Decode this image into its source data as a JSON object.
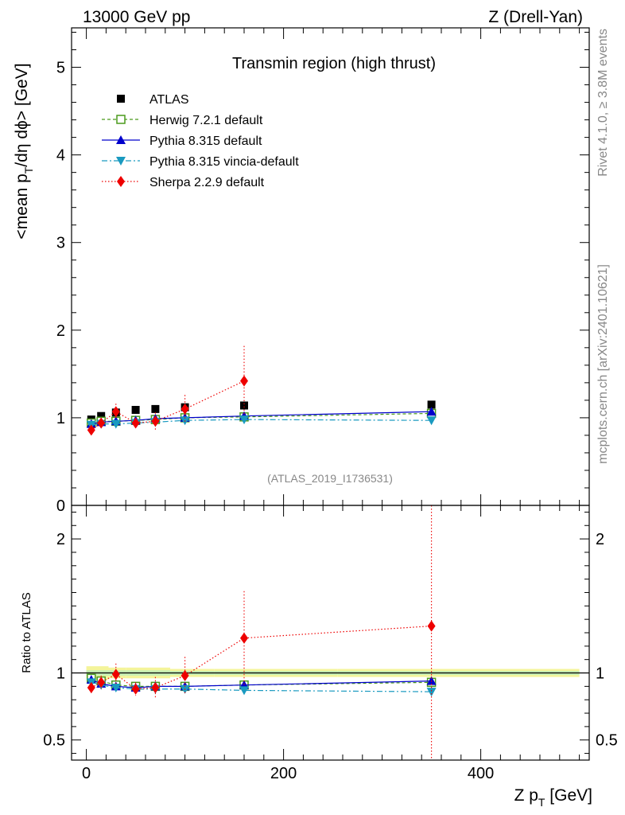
{
  "header": {
    "left_label": "13000 GeV pp",
    "right_label": "Z (Drell-Yan)"
  },
  "side_labels": {
    "rivet": "Rivet 4.1.0, ≥ 3.8M events",
    "mcplots": "mcplots.cern.ch [arXiv:2401.10621]"
  },
  "analysis_id": "(ATLAS_2019_I1736531)",
  "colors": {
    "atlas": "#000000",
    "herwig": "#4a9a1c",
    "pythia": "#0000cc",
    "vincia": "#1a9ac0",
    "sherpa": "#ee0000",
    "band_outer": "#f4f49a",
    "band_inner": "#c8f0b4"
  },
  "chart_data": [
    {
      "type": "scatter",
      "title": "Transmin region (high thrust)",
      "ylabel_main": "<mean p",
      "ylabel_sub": "T",
      "ylabel_tail": "/dη dϕ> [GeV]",
      "xlim": [
        -15,
        510
      ],
      "ylim": [
        0,
        5.45
      ],
      "yticks": [
        {
          "v": 0,
          "label": "0"
        },
        {
          "v": 1,
          "label": "1"
        },
        {
          "v": 2,
          "label": "2"
        },
        {
          "v": 3,
          "label": "3"
        },
        {
          "v": 4,
          "label": "4"
        },
        {
          "v": 5,
          "label": "5"
        }
      ],
      "x": [
        5,
        15,
        30,
        50,
        70,
        100,
        160,
        350
      ],
      "series": [
        {
          "key": "atlas",
          "name": "ATLAS",
          "style": "atlas",
          "values": [
            0.98,
            1.02,
            1.06,
            1.09,
            1.1,
            1.12,
            1.14,
            1.15
          ]
        },
        {
          "key": "herwig",
          "name": "Herwig 7.2.1 default",
          "style": "herwig",
          "values": [
            0.94,
            0.96,
            0.96,
            0.97,
            0.98,
            1.0,
            1.01,
            1.05
          ]
        },
        {
          "key": "pythia",
          "name": "Pythia 8.315 default",
          "style": "pythia",
          "values": [
            0.93,
            0.95,
            0.96,
            0.97,
            0.99,
            1.0,
            1.02,
            1.07
          ]
        },
        {
          "key": "vincia",
          "name": "Pythia 8.315 vincia-default",
          "style": "vincia",
          "values": [
            0.92,
            0.93,
            0.93,
            0.94,
            0.95,
            0.97,
            0.98,
            0.97
          ]
        },
        {
          "key": "sherpa",
          "name": "Sherpa 2.2.9 default",
          "style": "sherpa",
          "values": [
            0.86,
            0.94,
            1.07,
            0.94,
            0.96,
            1.1,
            1.42,
            null
          ],
          "err": [
            0.03,
            0.05,
            0.09,
            0.05,
            0.1,
            0.16,
            0.4,
            null
          ]
        }
      ]
    },
    {
      "type": "scatter",
      "ylabel": "Ratio to ATLAS",
      "xlabel_main": "Z p",
      "xlabel_sub": "T",
      "xlabel_tail": " [GeV]",
      "xlim": [
        -15,
        510
      ],
      "ylim": [
        0.35,
        2.25
      ],
      "reference": 1.0,
      "yticks": [
        {
          "v": 0.5,
          "label": "0.5"
        },
        {
          "v": 1,
          "label": "1"
        },
        {
          "v": 2,
          "label": "2"
        }
      ],
      "xticks": [
        {
          "v": 0,
          "label": "0"
        },
        {
          "v": 200,
          "label": "200"
        },
        {
          "v": 400,
          "label": "400"
        }
      ],
      "x": [
        5,
        15,
        30,
        50,
        70,
        100,
        160,
        350
      ],
      "band_outer": [
        0.05,
        0.05,
        0.04,
        0.04,
        0.04,
        0.03,
        0.03,
        0.03
      ],
      "band_inner": [
        0.02,
        0.02,
        0.02,
        0.02,
        0.02,
        0.015,
        0.015,
        0.015
      ],
      "series": [
        {
          "key": "herwig",
          "name": "Herwig 7.2.1 default",
          "style": "herwig",
          "values": [
            0.96,
            0.94,
            0.91,
            0.9,
            0.9,
            0.9,
            0.91,
            0.93
          ]
        },
        {
          "key": "pythia",
          "name": "Pythia 8.315 default",
          "style": "pythia",
          "values": [
            0.95,
            0.92,
            0.9,
            0.89,
            0.9,
            0.9,
            0.91,
            0.94
          ]
        },
        {
          "key": "vincia",
          "name": "Pythia 8.315 vincia-default",
          "style": "vincia",
          "values": [
            0.93,
            0.91,
            0.89,
            0.88,
            0.88,
            0.88,
            0.87,
            0.86
          ]
        },
        {
          "key": "sherpa",
          "name": "Sherpa 2.2.9 default",
          "style": "sherpa",
          "values": [
            0.89,
            0.93,
            0.99,
            0.88,
            0.89,
            0.98,
            1.26,
            1.35
          ],
          "err": [
            0.04,
            0.05,
            0.08,
            0.05,
            0.08,
            0.14,
            0.35,
            1.2
          ]
        }
      ]
    }
  ]
}
